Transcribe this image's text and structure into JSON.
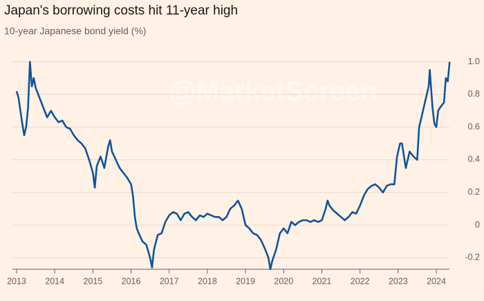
{
  "chart_data": {
    "type": "line",
    "title": "Japan's borrowing costs hit 11-year high",
    "subtitle": "10-year Japanese bond yield (%)",
    "watermark": "@MarketScreen",
    "x": [
      2013.0,
      2013.05,
      2013.1,
      2013.15,
      2013.2,
      2013.25,
      2013.3,
      2013.35,
      2013.4,
      2013.45,
      2013.5,
      2013.6,
      2013.7,
      2013.8,
      2013.9,
      2014.0,
      2014.1,
      2014.2,
      2014.3,
      2014.4,
      2014.5,
      2014.6,
      2014.7,
      2014.8,
      2014.9,
      2015.0,
      2015.05,
      2015.1,
      2015.2,
      2015.3,
      2015.4,
      2015.45,
      2015.5,
      2015.6,
      2015.7,
      2015.8,
      2015.9,
      2016.0,
      2016.05,
      2016.1,
      2016.15,
      2016.2,
      2016.3,
      2016.4,
      2016.5,
      2016.55,
      2016.6,
      2016.7,
      2016.8,
      2016.9,
      2017.0,
      2017.1,
      2017.2,
      2017.3,
      2017.4,
      2017.5,
      2017.6,
      2017.7,
      2017.8,
      2017.9,
      2018.0,
      2018.1,
      2018.2,
      2018.3,
      2018.4,
      2018.5,
      2018.6,
      2018.7,
      2018.8,
      2018.9,
      2019.0,
      2019.1,
      2019.2,
      2019.3,
      2019.4,
      2019.5,
      2019.6,
      2019.65,
      2019.7,
      2019.8,
      2019.9,
      2020.0,
      2020.1,
      2020.2,
      2020.3,
      2020.4,
      2020.5,
      2020.6,
      2020.7,
      2020.8,
      2020.9,
      2021.0,
      2021.1,
      2021.15,
      2021.2,
      2021.3,
      2021.4,
      2021.5,
      2021.6,
      2021.7,
      2021.8,
      2021.9,
      2022.0,
      2022.1,
      2022.2,
      2022.3,
      2022.4,
      2022.5,
      2022.6,
      2022.7,
      2022.8,
      2022.9,
      2022.97,
      2023.05,
      2023.1,
      2023.2,
      2023.3,
      2023.4,
      2023.5,
      2023.55,
      2023.6,
      2023.7,
      2023.8,
      2023.83,
      2023.9,
      2023.95,
      2024.0,
      2024.05,
      2024.1,
      2024.2,
      2024.25,
      2024.3,
      2024.35
    ],
    "series": [
      {
        "name": "10-year Japanese bond yield",
        "color": "#0f5499",
        "values": [
          0.82,
          0.78,
          0.7,
          0.62,
          0.55,
          0.6,
          0.72,
          1.0,
          0.85,
          0.9,
          0.84,
          0.78,
          0.72,
          0.66,
          0.7,
          0.66,
          0.63,
          0.64,
          0.6,
          0.59,
          0.55,
          0.52,
          0.5,
          0.47,
          0.4,
          0.32,
          0.23,
          0.36,
          0.42,
          0.35,
          0.48,
          0.52,
          0.45,
          0.4,
          0.35,
          0.32,
          0.29,
          0.25,
          0.18,
          0.05,
          -0.02,
          -0.05,
          -0.1,
          -0.12,
          -0.2,
          -0.26,
          -0.15,
          -0.06,
          -0.05,
          0.02,
          0.06,
          0.08,
          0.07,
          0.03,
          0.07,
          0.08,
          0.05,
          0.03,
          0.06,
          0.05,
          0.07,
          0.06,
          0.05,
          0.05,
          0.03,
          0.05,
          0.1,
          0.12,
          0.15,
          0.1,
          0.0,
          -0.02,
          -0.05,
          -0.06,
          -0.09,
          -0.14,
          -0.2,
          -0.27,
          -0.22,
          -0.15,
          -0.05,
          -0.02,
          -0.05,
          0.02,
          0.0,
          0.02,
          0.03,
          0.03,
          0.02,
          0.03,
          0.02,
          0.03,
          0.1,
          0.15,
          0.12,
          0.09,
          0.07,
          0.05,
          0.03,
          0.05,
          0.08,
          0.07,
          0.12,
          0.18,
          0.22,
          0.24,
          0.25,
          0.23,
          0.2,
          0.24,
          0.25,
          0.25,
          0.42,
          0.5,
          0.5,
          0.35,
          0.45,
          0.42,
          0.4,
          0.6,
          0.65,
          0.75,
          0.85,
          0.95,
          0.72,
          0.62,
          0.6,
          0.7,
          0.72,
          0.75,
          0.9,
          0.88,
          1.0
        ]
      }
    ],
    "xlim": [
      2013,
      2024.38
    ],
    "xticks": [
      2013,
      2014,
      2015,
      2016,
      2017,
      2018,
      2019,
      2020,
      2021,
      2022,
      2023,
      2024
    ],
    "ylim": [
      -0.27,
      1.04
    ],
    "yticks": [
      -0.2,
      0,
      0.2,
      0.4,
      0.6,
      0.8,
      {
        "value": 1,
        "label": "1.0"
      }
    ],
    "grid": true
  }
}
